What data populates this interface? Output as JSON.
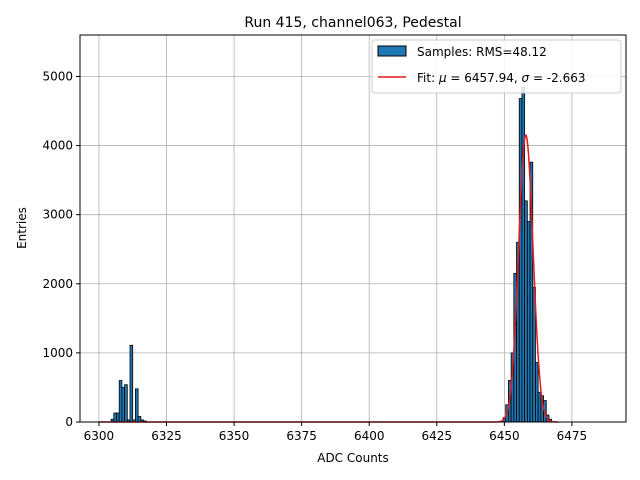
{
  "chart_data": {
    "type": "bar",
    "title": "Run 415, channel063, Pedestal",
    "xlabel": "ADC Counts",
    "ylabel": "Entries",
    "xlim": [
      6293,
      6495
    ],
    "ylim": [
      0,
      5600
    ],
    "xticks": [
      6300,
      6325,
      6350,
      6375,
      6400,
      6425,
      6450,
      6475
    ],
    "yticks": [
      0,
      1000,
      2000,
      3000,
      4000,
      5000
    ],
    "grid": true,
    "legend_position": "top-right",
    "colors": {
      "bar": "#1f77b4",
      "fit": "#e31a1c",
      "edge": "#000000",
      "grid": "#b0b0b0"
    },
    "series": [
      {
        "name": "Samples: RMS=48.12",
        "kind": "histogram",
        "bin_width": 1,
        "bins": [
          [
            6305,
            40
          ],
          [
            6306,
            130
          ],
          [
            6307,
            130
          ],
          [
            6308,
            600
          ],
          [
            6309,
            500
          ],
          [
            6310,
            540
          ],
          [
            6311,
            30
          ],
          [
            6312,
            1110
          ],
          [
            6313,
            30
          ],
          [
            6314,
            480
          ],
          [
            6315,
            80
          ],
          [
            6316,
            30
          ],
          [
            6317,
            15
          ],
          [
            6450,
            60
          ],
          [
            6451,
            250
          ],
          [
            6452,
            600
          ],
          [
            6453,
            1000
          ],
          [
            6454,
            2150
          ],
          [
            6455,
            2600
          ],
          [
            6456,
            4680
          ],
          [
            6457,
            4840
          ],
          [
            6458,
            3200
          ],
          [
            6459,
            2900
          ],
          [
            6460,
            3760
          ],
          [
            6461,
            1950
          ],
          [
            6462,
            860
          ],
          [
            6463,
            430
          ],
          [
            6464,
            380
          ],
          [
            6465,
            310
          ],
          [
            6466,
            100
          ],
          [
            6467,
            40
          ]
        ]
      },
      {
        "name_prefix": "Fit: ",
        "mu_symbol": "μ",
        "mu_text": " = 6457.94, ",
        "sigma_symbol": "σ",
        "sigma_text": " = -2.663",
        "kind": "gaussian",
        "mu": 6457.94,
        "sigma": -2.663,
        "amplitude": 4150,
        "x_range": [
          6300,
          6470
        ]
      }
    ]
  }
}
